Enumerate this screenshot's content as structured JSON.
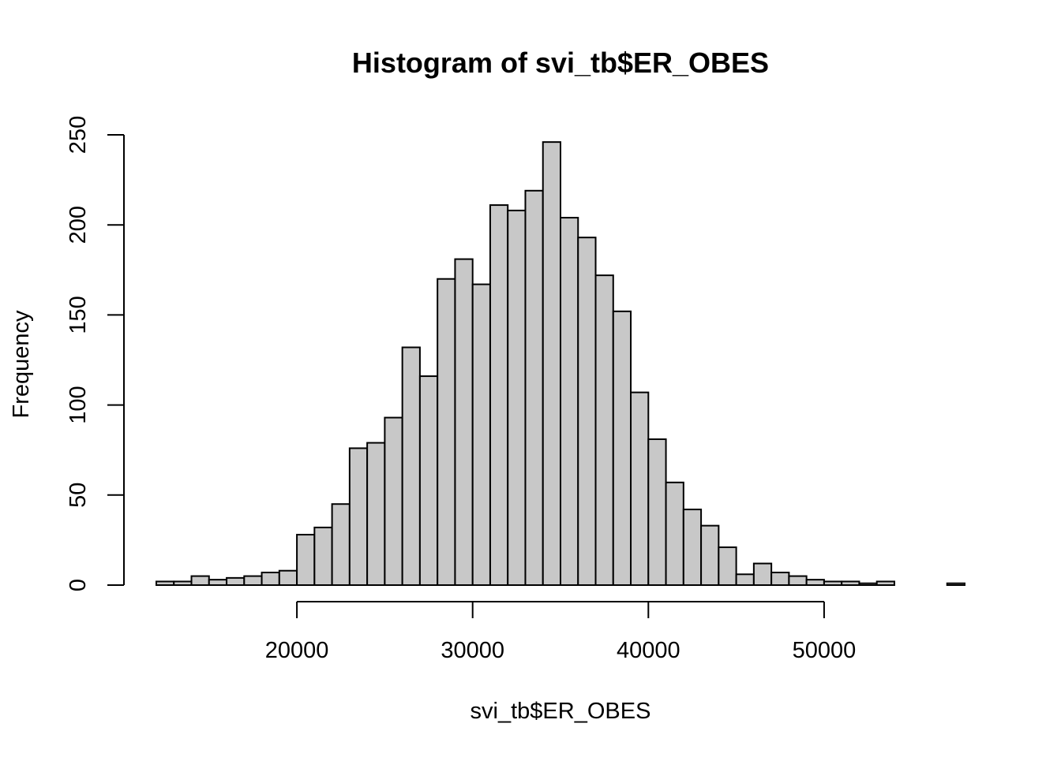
{
  "chart_data": {
    "type": "bar",
    "title": "Histogram of svi_tb$ER_OBES",
    "xlabel": "svi_tb$ER_OBES",
    "ylabel": "Frequency",
    "bin_width": 1000,
    "bin_start": 12000,
    "values": [
      2,
      2,
      5,
      3,
      4,
      5,
      7,
      8,
      28,
      32,
      45,
      76,
      79,
      93,
      132,
      116,
      170,
      181,
      167,
      211,
      208,
      219,
      246,
      204,
      193,
      172,
      152,
      107,
      81,
      57,
      42,
      33,
      21,
      6,
      12,
      7,
      5,
      3,
      2,
      2,
      1,
      2,
      0,
      0,
      0,
      1
    ],
    "xlim": [
      12000,
      58000
    ],
    "ylim": [
      0,
      250
    ],
    "x_ticks": [
      20000,
      30000,
      40000,
      50000
    ],
    "x_tick_labels": [
      "20000",
      "30000",
      "40000",
      "50000"
    ],
    "y_ticks": [
      0,
      50,
      100,
      150,
      200,
      250
    ],
    "y_tick_labels": [
      "0",
      "50",
      "100",
      "150",
      "200",
      "250"
    ],
    "grid": false,
    "colors": {
      "bar_fill": "#c8c8c8",
      "bar_stroke": "#000000"
    }
  }
}
